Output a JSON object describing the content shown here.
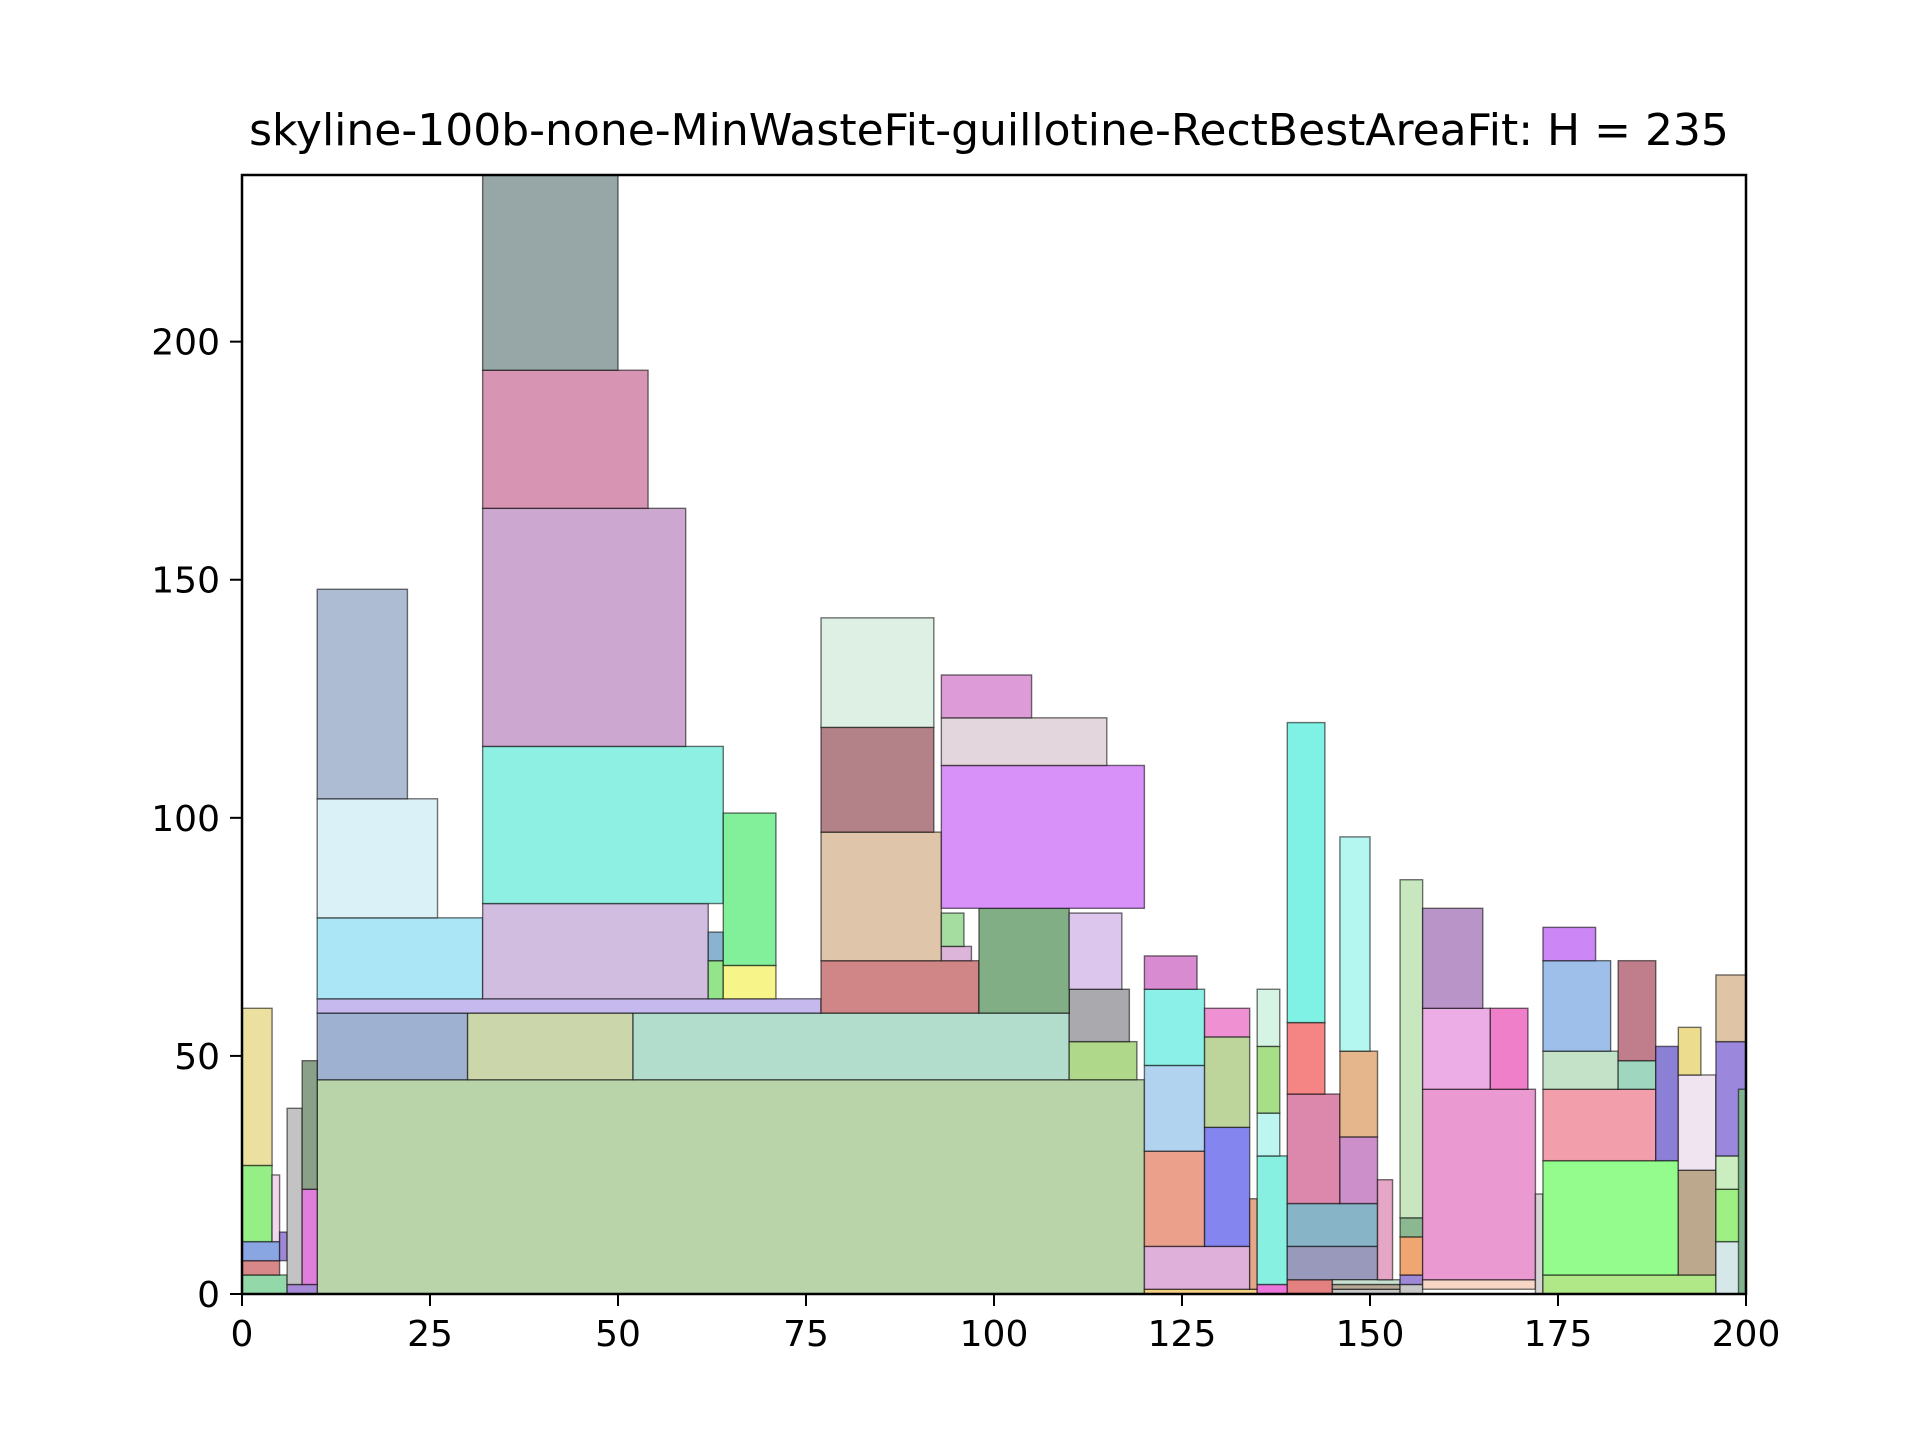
{
  "chart_data": {
    "type": "rectangle-packing",
    "title": "skyline-100b-none-MinWasteFit-guillotine-RectBestAreaFit: H = 235",
    "xlim": [
      0,
      200
    ],
    "ylim": [
      0,
      235
    ],
    "x_ticks": [
      0,
      25,
      50,
      75,
      100,
      125,
      150,
      175,
      200
    ],
    "y_ticks": [
      0,
      50,
      100,
      150,
      200
    ],
    "grid": false,
    "legend": "none",
    "rectangles": [
      {
        "x": 10,
        "y": 0,
        "w": 110,
        "h": 45,
        "color": "#b9d4a8"
      },
      {
        "x": 10,
        "y": 45,
        "w": 20,
        "h": 14,
        "color": "#9fb1d0"
      },
      {
        "x": 30,
        "y": 45,
        "w": 22,
        "h": 14,
        "color": "#cbd6ab"
      },
      {
        "x": 52,
        "y": 45,
        "w": 58,
        "h": 14,
        "color": "#b2dccb"
      },
      {
        "x": 110,
        "y": 45,
        "w": 9,
        "h": 8,
        "color": "#b0d88a"
      },
      {
        "x": 110,
        "y": 53,
        "w": 8,
        "h": 11,
        "color": "#a9a9ae"
      },
      {
        "x": 10,
        "y": 59,
        "w": 67,
        "h": 3,
        "color": "#c5b9ee"
      },
      {
        "x": 10,
        "y": 62,
        "w": 22,
        "h": 17,
        "color": "#abe6f6"
      },
      {
        "x": 10,
        "y": 79,
        "w": 16,
        "h": 25,
        "color": "#dbf1f8"
      },
      {
        "x": 10,
        "y": 104,
        "w": 12,
        "h": 44,
        "color": "#adbcd3"
      },
      {
        "x": 32,
        "y": 62,
        "w": 30,
        "h": 20,
        "color": "#d1bde0"
      },
      {
        "x": 32,
        "y": 82,
        "w": 32,
        "h": 33,
        "color": "#8ef0e2"
      },
      {
        "x": 32,
        "y": 115,
        "w": 27,
        "h": 50,
        "color": "#cca7cf"
      },
      {
        "x": 32,
        "y": 165,
        "w": 22,
        "h": 29,
        "color": "#d795b3"
      },
      {
        "x": 32,
        "y": 194,
        "w": 18,
        "h": 41,
        "color": "#97a7a7"
      },
      {
        "x": 62,
        "y": 62,
        "w": 2,
        "h": 8,
        "color": "#93e48a"
      },
      {
        "x": 62,
        "y": 70,
        "w": 2,
        "h": 6,
        "color": "#89b3d0"
      },
      {
        "x": 64,
        "y": 62,
        "w": 7,
        "h": 7,
        "color": "#f7f48a"
      },
      {
        "x": 64,
        "y": 69,
        "w": 7,
        "h": 32,
        "color": "#82f09a"
      },
      {
        "x": 77,
        "y": 59,
        "w": 21,
        "h": 11,
        "color": "#d08686"
      },
      {
        "x": 77,
        "y": 70,
        "w": 16,
        "h": 27,
        "color": "#dfc6ab"
      },
      {
        "x": 77,
        "y": 97,
        "w": 15,
        "h": 22,
        "color": "#b38188"
      },
      {
        "x": 77,
        "y": 119,
        "w": 15,
        "h": 23,
        "color": "#def0e3"
      },
      {
        "x": 93,
        "y": 70,
        "w": 4,
        "h": 3,
        "color": "#ddb5db"
      },
      {
        "x": 93,
        "y": 73,
        "w": 3,
        "h": 7,
        "color": "#a5dca0"
      },
      {
        "x": 98,
        "y": 59,
        "w": 12,
        "h": 22,
        "color": "#82ae86"
      },
      {
        "x": 93,
        "y": 81,
        "w": 27,
        "h": 30,
        "color": "#d891f8"
      },
      {
        "x": 93,
        "y": 111,
        "w": 22,
        "h": 10,
        "color": "#e3d6dc"
      },
      {
        "x": 93,
        "y": 121,
        "w": 12,
        "h": 9,
        "color": "#dd9cd8"
      },
      {
        "x": 110,
        "y": 64,
        "w": 7,
        "h": 16,
        "color": "#dcc6ee"
      },
      {
        "x": 0,
        "y": 0,
        "w": 6,
        "h": 4,
        "color": "#93d8a8"
      },
      {
        "x": 0,
        "y": 4,
        "w": 5,
        "h": 3,
        "color": "#d88888"
      },
      {
        "x": 0,
        "y": 7,
        "w": 5,
        "h": 4,
        "color": "#8aa6e2"
      },
      {
        "x": 0,
        "y": 11,
        "w": 4,
        "h": 16,
        "color": "#95ef86"
      },
      {
        "x": 0,
        "y": 27,
        "w": 4,
        "h": 33,
        "color": "#ebe09f"
      },
      {
        "x": 4,
        "y": 11,
        "w": 1,
        "h": 14,
        "color": "#f1d7ec"
      },
      {
        "x": 5,
        "y": 7,
        "w": 1,
        "h": 6,
        "color": "#9e88d6"
      },
      {
        "x": 6,
        "y": 0,
        "w": 4,
        "h": 2,
        "color": "#a88ad6"
      },
      {
        "x": 6,
        "y": 2,
        "w": 2,
        "h": 37,
        "color": "#c3c3c3"
      },
      {
        "x": 8,
        "y": 2,
        "w": 2,
        "h": 20,
        "color": "#df7fdc"
      },
      {
        "x": 8,
        "y": 22,
        "w": 2,
        "h": 27,
        "color": "#8aa088"
      },
      {
        "x": 120,
        "y": 0,
        "w": 15,
        "h": 1,
        "color": "#f5cf82"
      },
      {
        "x": 120,
        "y": 1,
        "w": 14,
        "h": 9,
        "color": "#dfb0da"
      },
      {
        "x": 120,
        "y": 10,
        "w": 8,
        "h": 20,
        "color": "#eba08c"
      },
      {
        "x": 120,
        "y": 30,
        "w": 8,
        "h": 18,
        "color": "#b1d3f0"
      },
      {
        "x": 120,
        "y": 48,
        "w": 8,
        "h": 16,
        "color": "#8bf1e8"
      },
      {
        "x": 120,
        "y": 64,
        "w": 7,
        "h": 7,
        "color": "#d98bd1"
      },
      {
        "x": 128,
        "y": 10,
        "w": 6,
        "h": 25,
        "color": "#8585ef"
      },
      {
        "x": 128,
        "y": 35,
        "w": 6,
        "h": 19,
        "color": "#bdd59b"
      },
      {
        "x": 128,
        "y": 54,
        "w": 6,
        "h": 6,
        "color": "#ef90d2"
      },
      {
        "x": 134,
        "y": 1,
        "w": 1,
        "h": 19,
        "color": "#e3a889"
      },
      {
        "x": 135,
        "y": 0,
        "w": 4,
        "h": 2,
        "color": "#ec75dc"
      },
      {
        "x": 135,
        "y": 2,
        "w": 4,
        "h": 27,
        "color": "#87f0e0"
      },
      {
        "x": 135,
        "y": 29,
        "w": 3,
        "h": 9,
        "color": "#bdf5f0"
      },
      {
        "x": 135,
        "y": 38,
        "w": 3,
        "h": 14,
        "color": "#a6df88"
      },
      {
        "x": 135,
        "y": 52,
        "w": 3,
        "h": 12,
        "color": "#d6f4e3"
      },
      {
        "x": 139,
        "y": 0,
        "w": 6,
        "h": 3,
        "color": "#e38080"
      },
      {
        "x": 139,
        "y": 3,
        "w": 12,
        "h": 7,
        "color": "#999abb"
      },
      {
        "x": 139,
        "y": 10,
        "w": 12,
        "h": 9,
        "color": "#87b4c6"
      },
      {
        "x": 139,
        "y": 19,
        "w": 7,
        "h": 23,
        "color": "#dc87ac"
      },
      {
        "x": 139,
        "y": 42,
        "w": 5,
        "h": 15,
        "color": "#f58585"
      },
      {
        "x": 139,
        "y": 57,
        "w": 5,
        "h": 63,
        "color": "#80f2e5"
      },
      {
        "x": 145,
        "y": 0,
        "w": 9,
        "h": 1,
        "color": "#c6c6c6"
      },
      {
        "x": 145,
        "y": 1,
        "w": 9,
        "h": 1,
        "color": "#b7a998"
      },
      {
        "x": 145,
        "y": 2,
        "w": 9,
        "h": 1,
        "color": "#c7e0cf"
      },
      {
        "x": 146,
        "y": 19,
        "w": 5,
        "h": 14,
        "color": "#cc8fca"
      },
      {
        "x": 146,
        "y": 33,
        "w": 5,
        "h": 18,
        "color": "#e5b58c"
      },
      {
        "x": 146,
        "y": 51,
        "w": 4,
        "h": 45,
        "color": "#b3f7f0"
      },
      {
        "x": 151,
        "y": 3,
        "w": 2,
        "h": 21,
        "color": "#e6a6c6"
      },
      {
        "x": 154,
        "y": 0,
        "w": 3,
        "h": 2,
        "color": "#c7c7c7"
      },
      {
        "x": 154,
        "y": 2,
        "w": 3,
        "h": 2,
        "color": "#9f88d6"
      },
      {
        "x": 154,
        "y": 4,
        "w": 3,
        "h": 8,
        "color": "#f0a670"
      },
      {
        "x": 154,
        "y": 12,
        "w": 3,
        "h": 4,
        "color": "#8bb891"
      },
      {
        "x": 154,
        "y": 16,
        "w": 3,
        "h": 71,
        "color": "#c8e7bf"
      },
      {
        "x": 157,
        "y": 1,
        "w": 15,
        "h": 2,
        "color": "#f7d6c5"
      },
      {
        "x": 157,
        "y": 3,
        "w": 15,
        "h": 40,
        "color": "#ea9ad0"
      },
      {
        "x": 157,
        "y": 43,
        "w": 9,
        "h": 17,
        "color": "#ecade6"
      },
      {
        "x": 157,
        "y": 60,
        "w": 8,
        "h": 21,
        "color": "#b894c9"
      },
      {
        "x": 166,
        "y": 43,
        "w": 5,
        "h": 17,
        "color": "#ef7fc8"
      },
      {
        "x": 172,
        "y": 0,
        "w": 1,
        "h": 21,
        "color": "#d5d5d5"
      },
      {
        "x": 173,
        "y": 0,
        "w": 23,
        "h": 4,
        "color": "#b0e887"
      },
      {
        "x": 173,
        "y": 4,
        "w": 18,
        "h": 24,
        "color": "#94fc8c"
      },
      {
        "x": 173,
        "y": 28,
        "w": 15,
        "h": 15,
        "color": "#f39fab"
      },
      {
        "x": 173,
        "y": 43,
        "w": 10,
        "h": 8,
        "color": "#c3e2c8"
      },
      {
        "x": 173,
        "y": 51,
        "w": 9,
        "h": 19,
        "color": "#9dbfea"
      },
      {
        "x": 173,
        "y": 70,
        "w": 7,
        "h": 7,
        "color": "#cc86f6"
      },
      {
        "x": 183,
        "y": 43,
        "w": 5,
        "h": 6,
        "color": "#9fd6bf"
      },
      {
        "x": 183,
        "y": 49,
        "w": 5,
        "h": 21,
        "color": "#c07e8c"
      },
      {
        "x": 188,
        "y": 28,
        "w": 3,
        "h": 24,
        "color": "#8b7fd6"
      },
      {
        "x": 191,
        "y": 4,
        "w": 5,
        "h": 22,
        "color": "#bba88d"
      },
      {
        "x": 191,
        "y": 26,
        "w": 5,
        "h": 20,
        "color": "#f1e4f1"
      },
      {
        "x": 191,
        "y": 46,
        "w": 3,
        "h": 10,
        "color": "#ecdc8e"
      },
      {
        "x": 196,
        "y": 0,
        "w": 4,
        "h": 11,
        "color": "#d5e7e8"
      },
      {
        "x": 196,
        "y": 11,
        "w": 4,
        "h": 11,
        "color": "#9ef085"
      },
      {
        "x": 196,
        "y": 22,
        "w": 4,
        "h": 7,
        "color": "#cbeec0"
      },
      {
        "x": 196,
        "y": 29,
        "w": 4,
        "h": 24,
        "color": "#9b88dd"
      },
      {
        "x": 196,
        "y": 53,
        "w": 4,
        "h": 14,
        "color": "#dfc5a6"
      },
      {
        "x": 199,
        "y": 0,
        "w": 1,
        "h": 43,
        "color": "#7fb48e"
      }
    ]
  }
}
